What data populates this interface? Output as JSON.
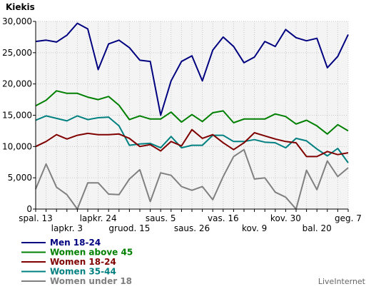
{
  "chart_data": {
    "type": "line",
    "ylabel": "Kiekis",
    "ylim": [
      0,
      30000
    ],
    "yticks": [
      0,
      5000,
      10000,
      15000,
      20000,
      25000,
      30000
    ],
    "ytick_labels": [
      "0",
      "5,000",
      "10,000",
      "15,000",
      "20,000",
      "25,000",
      "30,000"
    ],
    "grid": true,
    "legend_position": "bottom-left",
    "x_tick_labels": [
      {
        "label": "spal. 13",
        "index": 0,
        "row": 1
      },
      {
        "label": "lapkr. 3",
        "index": 3,
        "row": 2
      },
      {
        "label": "lapkr. 24",
        "index": 6,
        "row": 1
      },
      {
        "label": "gruod. 15",
        "index": 9,
        "row": 2
      },
      {
        "label": "saus. 5",
        "index": 12,
        "row": 1
      },
      {
        "label": "saus. 26",
        "index": 15,
        "row": 2
      },
      {
        "label": "vas. 16",
        "index": 18,
        "row": 1
      },
      {
        "label": "kov. 9",
        "index": 21,
        "row": 2
      },
      {
        "label": "kov. 30",
        "index": 24,
        "row": 1
      },
      {
        "label": "bal. 20",
        "index": 27,
        "row": 2
      },
      {
        "label": "geg. 7",
        "index": 30,
        "row": 1
      }
    ],
    "series": [
      {
        "name": "Men 18-24",
        "color": "#000080",
        "values": [
          26800,
          27000,
          26700,
          27800,
          29700,
          28800,
          22300,
          26400,
          27000,
          25800,
          23800,
          23600,
          15000,
          20500,
          23600,
          24500,
          20500,
          25400,
          27500,
          26000,
          23400,
          24300,
          26800,
          26000,
          28700,
          27400,
          26900,
          27300,
          22600,
          24400,
          27900
        ]
      },
      {
        "name": "Women above 45",
        "color": "#008000",
        "values": [
          16500,
          17400,
          18900,
          18500,
          18500,
          17900,
          17500,
          18000,
          16600,
          14300,
          14900,
          14400,
          14400,
          15500,
          13900,
          15100,
          14000,
          15400,
          15700,
          13800,
          14400,
          14400,
          14400,
          15200,
          14800,
          13600,
          14200,
          13300,
          12000,
          13500,
          12500
        ]
      },
      {
        "name": "Women 18-24",
        "color": "#800000",
        "values": [
          10000,
          10800,
          11900,
          11200,
          11800,
          12100,
          11900,
          11900,
          12000,
          11300,
          10000,
          10300,
          9300,
          10800,
          10100,
          12700,
          11300,
          11900,
          10600,
          9500,
          10600,
          12200,
          11700,
          11200,
          10800,
          10600,
          8400,
          8400,
          9200,
          8700,
          9000
        ]
      },
      {
        "name": "Women 35-44",
        "color": "#008080",
        "values": [
          14200,
          14900,
          14500,
          14100,
          14900,
          14300,
          14600,
          14700,
          13300,
          10200,
          10400,
          10500,
          9800,
          11600,
          9800,
          10200,
          10200,
          11800,
          11800,
          10800,
          10800,
          11100,
          10700,
          10600,
          9800,
          11300,
          10900,
          9600,
          8500,
          9700,
          7400
        ]
      },
      {
        "name": "Women under 18",
        "color": "#808080",
        "values": [
          3200,
          7200,
          3500,
          2300,
          0,
          4200,
          4200,
          2400,
          2300,
          4800,
          6300,
          1200,
          5800,
          5400,
          3600,
          3000,
          3600,
          1500,
          5200,
          8400,
          9500,
          4800,
          5000,
          2700,
          1900,
          0,
          6200,
          3100,
          7700,
          5200,
          6600
        ]
      }
    ]
  },
  "branding": "LiveInternet"
}
